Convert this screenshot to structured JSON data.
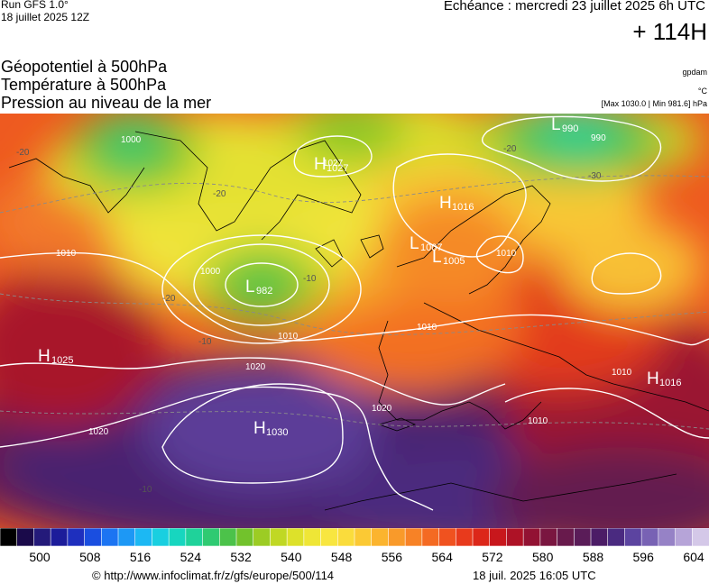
{
  "header": {
    "run_model": "Run GFS 1.0°",
    "run_date": "18 juillet 2025 12Z",
    "echeance": "Echéance : mercredi 23 juillet 2025 6h UTC",
    "offset": "+ 114H",
    "field_geopotential": "Géopotentiel à 500hPa",
    "field_temperature": "Température à 500hPa",
    "field_pressure": "Pression au niveau de la mer",
    "unit_geopotential": "gpdam",
    "unit_temperature": "°C",
    "pressure_range": "[Max 1030.0 | Min 981.6] hPa"
  },
  "map_labels": {
    "highs": [
      {
        "letter": "H",
        "value": "1025"
      },
      {
        "letter": "H",
        "value": "1030"
      },
      {
        "letter": "H",
        "value": "1027"
      },
      {
        "letter": "H",
        "value": "1016"
      },
      {
        "letter": "H",
        "value": "1016"
      }
    ],
    "lows": [
      {
        "letter": "L",
        "value": "982"
      },
      {
        "letter": "L",
        "value": "1007"
      },
      {
        "letter": "L",
        "value": "1005"
      },
      {
        "letter": "L",
        "value": "990"
      }
    ],
    "isobars": [
      "1010",
      "1000",
      "1010",
      "1020",
      "1020",
      "1020",
      "1010",
      "1010",
      "1010",
      "1027",
      "990",
      "1000",
      "1010"
    ],
    "isotherms": [
      "-20",
      "-20",
      "-20",
      "-10",
      "-10",
      "-20",
      "-30",
      "-10"
    ]
  },
  "legend": {
    "colors": [
      "#000000",
      "#1a0a4a",
      "#241a7a",
      "#1c1c9a",
      "#1e2fbe",
      "#1a4ee0",
      "#1c74f2",
      "#1d98f5",
      "#1cb8f3",
      "#19cfe0",
      "#17d6bf",
      "#1fd29a",
      "#2fca72",
      "#4cc24a",
      "#72c22c",
      "#9ccc24",
      "#c0d824",
      "#dde12a",
      "#efe636",
      "#f8e640",
      "#fadc3c",
      "#fbc934",
      "#fbb42e",
      "#f99a2a",
      "#f78226",
      "#f46a22",
      "#f0521f",
      "#e83a1c",
      "#dc2719",
      "#c8171c",
      "#ae1226",
      "#921233",
      "#7a1640",
      "#681a4c",
      "#5a1c58",
      "#4c1c66",
      "#4a2a80",
      "#5c44a0",
      "#7862b4",
      "#9682c6",
      "#b6a4d8",
      "#d4c8e8"
    ],
    "labels": [
      "500",
      "508",
      "516",
      "524",
      "532",
      "540",
      "548",
      "556",
      "564",
      "572",
      "580",
      "588",
      "596",
      "604"
    ]
  },
  "footer": {
    "source": "© http://www.infoclimat.fr/z/gfs/europe/500/114",
    "generated": "18 juil. 2025 16:05 UTC"
  }
}
